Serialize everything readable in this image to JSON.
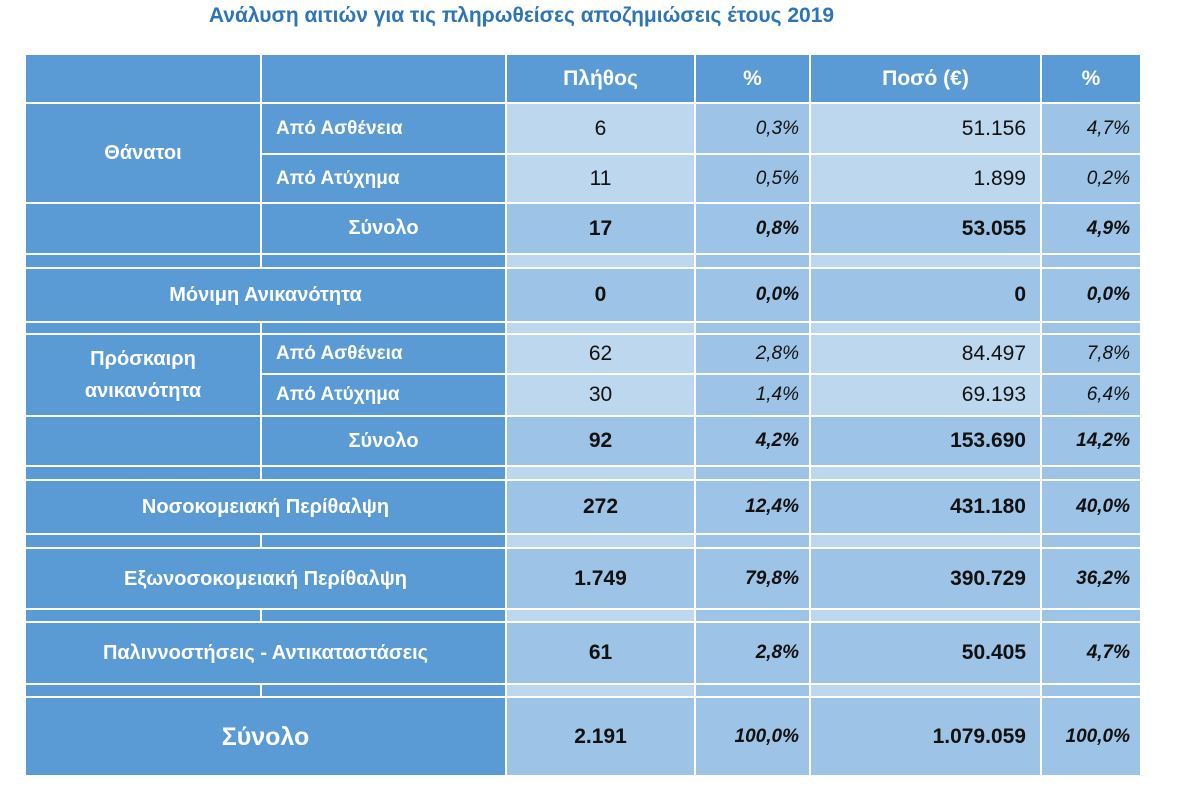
{
  "title": "Ανάλυση αιτιών για τις πληρωθείσες αποζημιώσεις έτους 2019",
  "header": {
    "count": "Πλήθος",
    "pct1": "%",
    "amount": "Ποσό (€)",
    "pct2": "%"
  },
  "deaths": {
    "label": "Θάνατοι",
    "illness": {
      "label": "Από Ασθένεια",
      "count": "6",
      "pct": "0,3%",
      "amount": "51.156",
      "amount_pct": "4,7%"
    },
    "accident": {
      "label": "Από Ατύχημα",
      "count": "11",
      "pct": "0,5%",
      "amount": "1.899",
      "amount_pct": "0,2%"
    },
    "total": {
      "label": "Σύνολο",
      "count": "17",
      "pct": "0,8%",
      "amount": "53.055",
      "amount_pct": "4,9%"
    }
  },
  "permanent": {
    "label": "Μόνιμη  Ανικανότητα",
    "count": "0",
    "pct": "0,0%",
    "amount": "0",
    "amount_pct": "0,0%"
  },
  "temporary": {
    "label_line1": "Πρόσκαιρη",
    "label_line2": "ανικανότητα",
    "illness": {
      "label": "Από Ασθένεια",
      "count": "62",
      "pct": "2,8%",
      "amount": "84.497",
      "amount_pct": "7,8%"
    },
    "accident": {
      "label": "Από Ατύχημα",
      "count": "30",
      "pct": "1,4%",
      "amount": "69.193",
      "amount_pct": "6,4%"
    },
    "total": {
      "label": "Σύνολο",
      "count": "92",
      "pct": "4,2%",
      "amount": "153.690",
      "amount_pct": "14,2%"
    }
  },
  "hospital": {
    "label": "Νοσοκομειακή  Περίθαλψη",
    "count": "272",
    "pct": "12,4%",
    "amount": "431.180",
    "amount_pct": "40,0%"
  },
  "outpatient": {
    "label": "Εξωνοσοκομειακή  Περίθαλψη",
    "count": "1.749",
    "pct": "79,8%",
    "amount": "390.729",
    "amount_pct": "36,2%"
  },
  "repatriation": {
    "label": "Παλιννοστήσεις  -  Αντικαταστάσεις",
    "count": "61",
    "pct": "2,8%",
    "amount": "50.405",
    "amount_pct": "4,7%"
  },
  "grand_total": {
    "label": "Σύνολο",
    "count": "2.191",
    "pct": "100,0%",
    "amount": "1.079.059",
    "amount_pct": "100,0%"
  },
  "colors": {
    "header_blue": "#5b9bd5",
    "light_cell": "#bdd7ee",
    "dark_cell": "#9dc3e6",
    "title_blue": "#2e75b6"
  }
}
